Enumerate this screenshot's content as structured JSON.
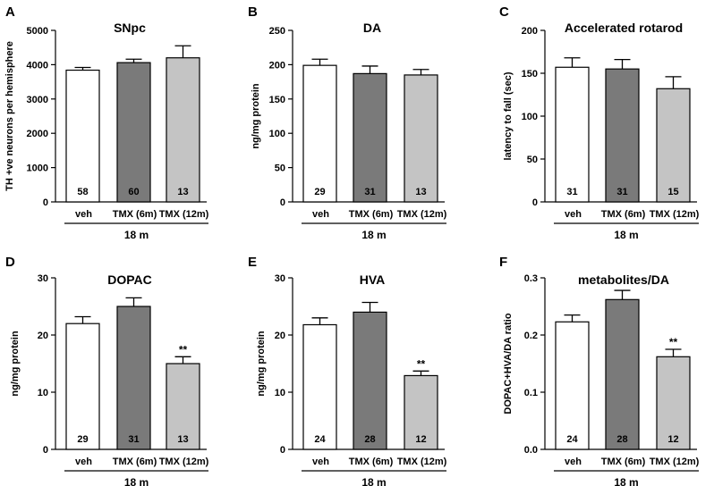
{
  "colors": {
    "veh": "#ffffff",
    "tmx6": "#7a7a7a",
    "tmx12": "#c4c4c4",
    "stroke": "#000000"
  },
  "chart_data": [
    {
      "panel": "A",
      "type": "bar",
      "title": "SNpc",
      "ylabel": "TH +ve neurons per hemisphere",
      "ylim": [
        0,
        5000
      ],
      "yticks": [
        0,
        1000,
        2000,
        3000,
        4000,
        5000
      ],
      "categories": [
        "veh",
        "TMX (6m)",
        "TMX (12m)"
      ],
      "group_label": "18 m",
      "values": [
        3840,
        4060,
        4200
      ],
      "errors": [
        80,
        100,
        350
      ],
      "n": [
        "58",
        "60",
        "13"
      ],
      "significance": [
        "",
        "",
        ""
      ]
    },
    {
      "panel": "B",
      "type": "bar",
      "title": "DA",
      "ylabel": "ng/mg protein",
      "ylim": [
        0,
        250
      ],
      "yticks": [
        0,
        50,
        100,
        150,
        200,
        250
      ],
      "categories": [
        "veh",
        "TMX (6m)",
        "TMX (12m)"
      ],
      "group_label": "18 m",
      "values": [
        199,
        187,
        185
      ],
      "errors": [
        9,
        11,
        8
      ],
      "n": [
        "29",
        "31",
        "13"
      ],
      "significance": [
        "",
        "",
        ""
      ]
    },
    {
      "panel": "C",
      "type": "bar",
      "title": "Accelerated rotarod",
      "ylabel": "latency to fall (sec)",
      "ylim": [
        0,
        200
      ],
      "yticks": [
        0,
        50,
        100,
        150,
        200
      ],
      "categories": [
        "veh",
        "TMX (6m)",
        "TMX (12m)"
      ],
      "group_label": "18 m",
      "values": [
        157,
        155,
        132
      ],
      "errors": [
        11,
        11,
        14
      ],
      "n": [
        "31",
        "31",
        "15"
      ],
      "significance": [
        "",
        "",
        ""
      ]
    },
    {
      "panel": "D",
      "type": "bar",
      "title": "DOPAC",
      "ylabel": "ng/mg protein",
      "ylim": [
        0,
        30
      ],
      "yticks": [
        0,
        10,
        20,
        30
      ],
      "categories": [
        "veh",
        "TMX (6m)",
        "TMX (12m)"
      ],
      "group_label": "18 m",
      "values": [
        22,
        25,
        15
      ],
      "errors": [
        1.2,
        1.5,
        1.2
      ],
      "n": [
        "29",
        "31",
        "13"
      ],
      "significance": [
        "",
        "",
        "**"
      ]
    },
    {
      "panel": "E",
      "type": "bar",
      "title": "HVA",
      "ylabel": "ng/mg protein",
      "ylim": [
        0,
        30
      ],
      "yticks": [
        0,
        10,
        20,
        30
      ],
      "categories": [
        "veh",
        "TMX (6m)",
        "TMX (12m)"
      ],
      "group_label": "18 m",
      "values": [
        21.8,
        24,
        12.9
      ],
      "errors": [
        1.2,
        1.7,
        0.8
      ],
      "n": [
        "24",
        "28",
        "12"
      ],
      "significance": [
        "",
        "",
        "**"
      ]
    },
    {
      "panel": "F",
      "type": "bar",
      "title": "metabolites/DA",
      "ylabel": "DOPAC+HVA/DA ratio",
      "ylim": [
        0,
        0.3
      ],
      "yticks": [
        "0.0",
        "0.1",
        "0.2",
        "0.3"
      ],
      "categories": [
        "veh",
        "TMX (6m)",
        "TMX (12m)"
      ],
      "group_label": "18 m",
      "values": [
        0.223,
        0.262,
        0.162
      ],
      "errors": [
        0.012,
        0.016,
        0.013
      ],
      "n": [
        "24",
        "28",
        "12"
      ],
      "significance": [
        "",
        "",
        "**"
      ]
    }
  ]
}
